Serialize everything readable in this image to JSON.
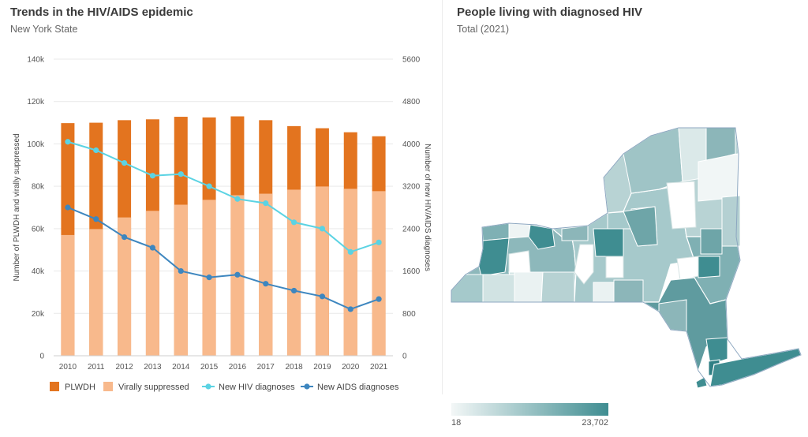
{
  "left_panel": {
    "title": "Trends in the HIV/AIDS epidemic",
    "subtitle": "New York State"
  },
  "right_panel": {
    "title": "People living with diagnosed HIV",
    "subtitle": "Total (2021)",
    "scale": {
      "min_label": "18",
      "max_label": "23,702",
      "min_color": "#f3f7f7",
      "max_color": "#3f8d91"
    }
  },
  "chart_data": {
    "type": "bar",
    "categories": [
      "2010",
      "2011",
      "2012",
      "2013",
      "2014",
      "2015",
      "2016",
      "2017",
      "2018",
      "2019",
      "2020",
      "2021"
    ],
    "series": [
      {
        "name": "PLWDH",
        "kind": "bar",
        "axis": "left",
        "color": "#e3741f",
        "values": [
          109800,
          110000,
          111200,
          111600,
          112800,
          112500,
          113000,
          111200,
          108400,
          107400,
          105500,
          103600
        ]
      },
      {
        "name": "Virally suppressed",
        "kind": "bar",
        "axis": "left",
        "color": "#f8b98c",
        "values": [
          57000,
          59800,
          65300,
          68400,
          71300,
          73600,
          75800,
          76500,
          78400,
          79900,
          78800,
          77700
        ]
      },
      {
        "name": "New HIV diagnoses",
        "kind": "line",
        "axis": "right",
        "color": "#5bd3e3",
        "values": [
          4040,
          3880,
          3640,
          3400,
          3430,
          3200,
          2960,
          2880,
          2520,
          2400,
          1960,
          2140
        ]
      },
      {
        "name": "New AIDS diagnoses",
        "kind": "line",
        "axis": "right",
        "color": "#3d86bf",
        "values": [
          2800,
          2580,
          2240,
          2040,
          1600,
          1480,
          1530,
          1360,
          1230,
          1120,
          880,
          1070
        ]
      }
    ],
    "y_left": {
      "label": "Number of PLWDH and virally suppressed",
      "range": [
        0,
        140000
      ],
      "ticks": [
        0,
        20000,
        40000,
        60000,
        80000,
        100000,
        120000,
        140000
      ],
      "tick_labels": [
        "0",
        "20k",
        "40k",
        "60k",
        "80k",
        "100k",
        "120k",
        "140k"
      ]
    },
    "y_right": {
      "label": "Number of new HIV/AIDS diagnoses",
      "range": [
        0,
        5600
      ],
      "ticks": [
        0,
        800,
        1600,
        2400,
        3200,
        4000,
        4800,
        5600
      ],
      "tick_labels": [
        "0",
        "800",
        "1600",
        "2400",
        "3200",
        "4000",
        "4800",
        "5600"
      ]
    },
    "grid": true,
    "legend_position": "bottom"
  }
}
